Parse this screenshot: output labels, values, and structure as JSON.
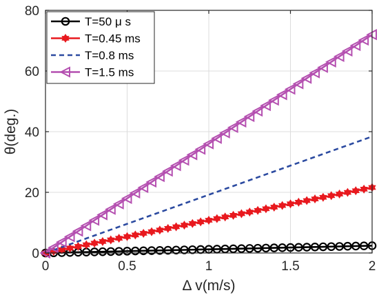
{
  "chart_data": {
    "type": "line",
    "title": "",
    "xlabel": "Δ v(m/s)",
    "ylabel": "θ(deg.)",
    "xlim": [
      0,
      2
    ],
    "ylim": [
      0,
      80
    ],
    "xticks": [
      0,
      0.5,
      1,
      1.5,
      2
    ],
    "xtick_labels": [
      "0",
      "0.5",
      "1",
      "1.5",
      "2"
    ],
    "yticks": [
      0,
      20,
      40,
      60,
      80
    ],
    "ytick_labels": [
      "0",
      "20",
      "40",
      "60",
      "80"
    ],
    "grid": true,
    "legend_position": "top-left",
    "x": [
      0,
      0.05,
      0.1,
      0.15,
      0.2,
      0.25,
      0.3,
      0.35,
      0.4,
      0.45,
      0.5,
      0.55,
      0.6,
      0.65,
      0.7,
      0.75,
      0.8,
      0.85,
      0.9,
      0.95,
      1.0,
      1.05,
      1.1,
      1.15,
      1.2,
      1.25,
      1.3,
      1.35,
      1.4,
      1.45,
      1.5,
      1.55,
      1.6,
      1.65,
      1.7,
      1.75,
      1.8,
      1.85,
      1.9,
      1.95,
      2.0
    ],
    "series": [
      {
        "name": "T=50 μ s",
        "color": "#000000",
        "line_style": "solid",
        "marker": "open-circle",
        "values": [
          0,
          0.06,
          0.12,
          0.18,
          0.24,
          0.3,
          0.36,
          0.42,
          0.48,
          0.54,
          0.6,
          0.66,
          0.72,
          0.78,
          0.84,
          0.9,
          0.96,
          1.02,
          1.08,
          1.14,
          1.2,
          1.26,
          1.32,
          1.38,
          1.44,
          1.5,
          1.56,
          1.62,
          1.68,
          1.74,
          1.8,
          1.86,
          1.92,
          1.98,
          2.04,
          2.1,
          2.16,
          2.22,
          2.28,
          2.34,
          2.4
        ]
      },
      {
        "name": "T=0.45 ms",
        "color": "#e8191e",
        "line_style": "solid",
        "marker": "filled-star",
        "values": [
          0,
          0.54,
          1.08,
          1.62,
          2.16,
          2.7,
          3.24,
          3.78,
          4.32,
          4.86,
          5.4,
          5.94,
          6.48,
          7.02,
          7.56,
          8.1,
          8.64,
          9.18,
          9.72,
          10.26,
          10.8,
          11.34,
          11.88,
          12.42,
          12.96,
          13.5,
          14.04,
          14.58,
          15.12,
          15.66,
          16.2,
          16.74,
          17.28,
          17.82,
          18.36,
          18.9,
          19.44,
          19.98,
          20.52,
          21.06,
          21.6
        ]
      },
      {
        "name": "T=0.8 ms",
        "color": "#2b4aa0",
        "line_style": "dashed",
        "marker": "none",
        "values": [
          0,
          0.96,
          1.92,
          2.88,
          3.84,
          4.8,
          5.76,
          6.72,
          7.68,
          8.64,
          9.6,
          10.56,
          11.52,
          12.48,
          13.44,
          14.4,
          15.36,
          16.32,
          17.28,
          18.24,
          19.2,
          20.16,
          21.12,
          22.08,
          23.04,
          24.0,
          24.96,
          25.92,
          26.88,
          27.84,
          28.8,
          29.76,
          30.72,
          31.68,
          32.64,
          33.6,
          34.56,
          35.52,
          36.48,
          37.44,
          38.4
        ]
      },
      {
        "name": "T=1.5 ms",
        "color": "#b44fb0",
        "line_style": "solid",
        "marker": "open-left-triangle",
        "values": [
          0,
          1.8,
          3.6,
          5.4,
          7.2,
          9.0,
          10.8,
          12.6,
          14.4,
          16.2,
          18.0,
          19.8,
          21.6,
          23.4,
          25.2,
          27.0,
          28.8,
          30.6,
          32.4,
          34.2,
          36.0,
          37.8,
          39.6,
          41.4,
          43.2,
          45.0,
          46.8,
          48.6,
          50.4,
          52.2,
          54.0,
          55.8,
          57.6,
          59.4,
          61.2,
          63.0,
          64.8,
          66.6,
          68.4,
          70.2,
          72.0
        ]
      }
    ]
  }
}
